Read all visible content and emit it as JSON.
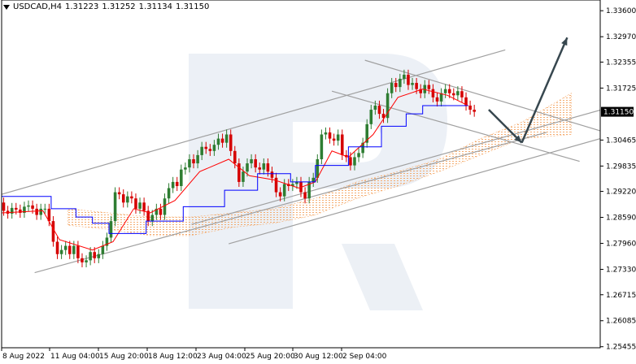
{
  "header": {
    "symbol": "USDCAD,H4",
    "open": "1.31223",
    "high": "1.31252",
    "low": "1.31134",
    "close": "1.31150"
  },
  "chart_data": {
    "type": "line",
    "title": "USDCAD,H4",
    "x_tick_labels": [
      "8 Aug 2022",
      "11 Aug 04:00",
      "15 Aug 20:00",
      "18 Aug 12:00",
      "23 Aug 04:00",
      "25 Aug 20:00",
      "30 Aug 12:00",
      "2 Sep 04:00"
    ],
    "y_tick_labels": [
      "1.33600",
      "1.32970",
      "1.32355",
      "1.31725",
      "1.30465",
      "1.29835",
      "1.29220",
      "1.28590",
      "1.27960",
      "1.27330",
      "1.26715",
      "1.26085",
      "1.25455"
    ],
    "y_ticks": [
      1.336,
      1.3297,
      1.32355,
      1.31725,
      1.30465,
      1.29835,
      1.2922,
      1.2859,
      1.2796,
      1.2733,
      1.26715,
      1.26085,
      1.25455
    ],
    "current_price_label": "1.31150",
    "current_price": 1.3115,
    "ylim": [
      1.2543,
      1.3386
    ],
    "xlim": [
      0,
      145
    ],
    "grid": false,
    "colors": {
      "bull": "#2e7d32",
      "bear": "#d50000",
      "tenkan": "#ff0000",
      "kijun": "#0000ff",
      "cloud": "#f4a460",
      "channel": "#a0a0a0",
      "arrow": "#37474f",
      "watermark": "#dde4ee"
    },
    "series": [
      {
        "name": "USDCAD,H4",
        "type": "ohlc",
        "start": 1.2895,
        "closes": [
          1.2875,
          1.2868,
          1.2882,
          1.2878,
          1.287,
          1.2885,
          1.2888,
          1.288,
          1.2865,
          1.288,
          1.288,
          1.285,
          1.28,
          1.277,
          1.278,
          1.279,
          1.277,
          1.279,
          1.276,
          1.275,
          1.2755,
          1.2775,
          1.276,
          1.277,
          1.279,
          1.281,
          1.285,
          1.292,
          1.2915,
          1.2895,
          1.291,
          1.2905,
          1.288,
          1.2895,
          1.2875,
          1.285,
          1.2865,
          1.288,
          1.2865,
          1.2905,
          1.293,
          1.2945,
          1.2935,
          1.2975,
          1.298,
          1.3,
          1.299,
          1.301,
          1.303,
          1.3025,
          1.302,
          1.3035,
          1.305,
          1.304,
          1.306,
          1.302,
          1.299,
          1.2945,
          1.297,
          1.299,
          1.3,
          1.298,
          1.2975,
          1.299,
          1.297,
          1.2955,
          1.292,
          1.291,
          1.294,
          1.2935,
          1.294,
          1.2945,
          1.292,
          1.2905,
          1.2945,
          1.2955,
          1.3,
          1.306,
          1.3065,
          1.305,
          1.3045,
          1.306,
          1.301,
          1.3005,
          1.2985,
          1.3005,
          1.3015,
          1.304,
          1.3085,
          1.312,
          1.313,
          1.311,
          1.31,
          1.316,
          1.3185,
          1.3175,
          1.3195,
          1.3205,
          1.318,
          1.3185,
          1.317,
          1.316,
          1.318,
          1.317,
          1.315,
          1.314,
          1.316,
          1.317,
          1.316,
          1.3155,
          1.3165,
          1.315,
          1.313,
          1.312,
          1.3115
        ]
      },
      {
        "name": "Tenkan-sen",
        "type": "line",
        "points": [
          [
            0,
            1.287
          ],
          [
            10,
            1.2875
          ],
          [
            14,
            1.2805
          ],
          [
            22,
            1.278
          ],
          [
            27,
            1.28
          ],
          [
            32,
            1.288
          ],
          [
            36,
            1.287
          ],
          [
            42,
            1.29
          ],
          [
            48,
            1.297
          ],
          [
            55,
            1.3
          ],
          [
            60,
            1.296
          ],
          [
            66,
            1.295
          ],
          [
            72,
            1.293
          ],
          [
            76,
            1.2945
          ],
          [
            80,
            1.302
          ],
          [
            84,
            1.3005
          ],
          [
            90,
            1.306
          ],
          [
            96,
            1.315
          ],
          [
            102,
            1.317
          ],
          [
            108,
            1.3155
          ],
          [
            113,
            1.313
          ]
        ]
      },
      {
        "name": "Kijun-sen",
        "type": "line",
        "points": [
          [
            0,
            1.291
          ],
          [
            12,
            1.291
          ],
          [
            12,
            1.288
          ],
          [
            18,
            1.288
          ],
          [
            18,
            1.286
          ],
          [
            22,
            1.286
          ],
          [
            22,
            1.2845
          ],
          [
            26,
            1.2845
          ],
          [
            26,
            1.282
          ],
          [
            35,
            1.282
          ],
          [
            35,
            1.285
          ],
          [
            44,
            1.285
          ],
          [
            44,
            1.2885
          ],
          [
            54,
            1.2885
          ],
          [
            54,
            1.2925
          ],
          [
            62,
            1.2925
          ],
          [
            62,
            1.2965
          ],
          [
            70,
            1.2965
          ],
          [
            70,
            1.2945
          ],
          [
            76,
            1.2945
          ],
          [
            76,
            1.2985
          ],
          [
            84,
            1.2985
          ],
          [
            84,
            1.303
          ],
          [
            92,
            1.303
          ],
          [
            92,
            1.308
          ],
          [
            98,
            1.308
          ],
          [
            98,
            1.311
          ],
          [
            102,
            1.311
          ],
          [
            102,
            1.313
          ],
          [
            113,
            1.313
          ]
        ]
      },
      {
        "name": "Kumo",
        "type": "area",
        "upper": [
          [
            16,
            1.288
          ],
          [
            26,
            1.287
          ],
          [
            36,
            1.286
          ],
          [
            46,
            1.286
          ],
          [
            56,
            1.287
          ],
          [
            66,
            1.288
          ],
          [
            76,
            1.2905
          ],
          [
            86,
            1.2945
          ],
          [
            96,
            1.297
          ],
          [
            106,
            1.3
          ],
          [
            116,
            1.305
          ],
          [
            126,
            1.309
          ],
          [
            138,
            1.316
          ]
        ],
        "lower": [
          [
            16,
            1.284
          ],
          [
            26,
            1.283
          ],
          [
            36,
            1.2815
          ],
          [
            46,
            1.2815
          ],
          [
            56,
            1.2835
          ],
          [
            66,
            1.2845
          ],
          [
            76,
            1.2865
          ],
          [
            86,
            1.2905
          ],
          [
            96,
            1.2935
          ],
          [
            106,
            1.297
          ],
          [
            116,
            1.301
          ],
          [
            126,
            1.305
          ],
          [
            138,
            1.306
          ]
        ]
      }
    ],
    "channel_lines": [
      {
        "from": [
          0,
          1.2915
        ],
        "to": [
          122,
          1.3265
        ]
      },
      {
        "from": [
          8,
          1.2725
        ],
        "to": [
          132,
          1.3065
        ]
      },
      {
        "from": [
          46,
          1.2842
        ],
        "to": [
          165,
          1.3175
        ]
      },
      {
        "from": [
          55,
          1.2795
        ],
        "to": [
          175,
          1.3135
        ]
      },
      {
        "from": [
          88,
          1.324
        ],
        "to": [
          153,
          1.3045
        ]
      },
      {
        "from": [
          80,
          1.3165
        ],
        "to": [
          140,
          1.2995
        ]
      }
    ],
    "forecast_arrows": [
      {
        "from": [
          118,
          1.312
        ],
        "to": [
          126,
          1.304
        ]
      },
      {
        "from": [
          126,
          1.304
        ],
        "to": [
          137,
          1.3295
        ]
      }
    ]
  }
}
